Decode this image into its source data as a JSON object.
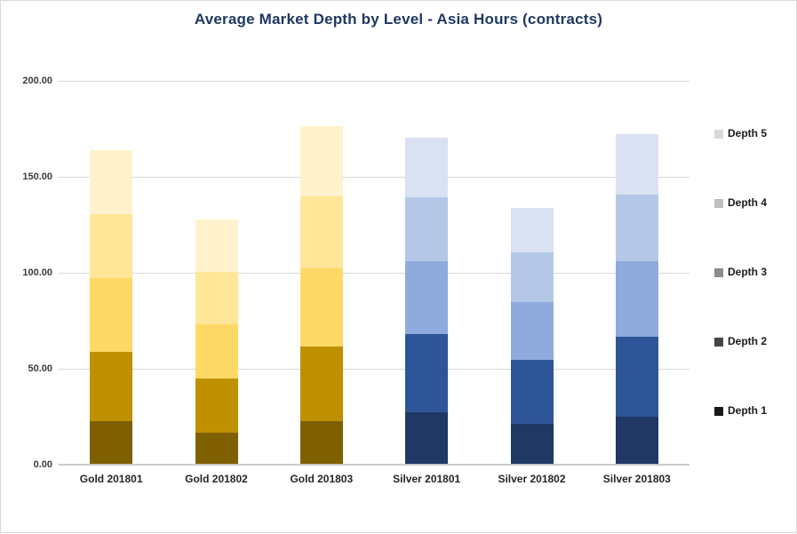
{
  "title": "Average Market Depth by Level - Asia Hours (contracts)",
  "colors": {
    "title_text": "#1F3864",
    "gridline": "#D9D9D9",
    "axis_line": "#C9C9C9",
    "y_tick_text": "#3B3B3B",
    "x_label_text": "#262626",
    "legend_text": "#1A1A1A",
    "gold_stack_bottom_to_top": [
      "#7F6000",
      "#BF9000",
      "#FFD966",
      "#FFE699",
      "#FFF2CC"
    ],
    "silver_stack_bottom_to_top": [
      "#1F3864",
      "#2E5597",
      "#8FAADC",
      "#B4C7E7",
      "#D9E1F2"
    ],
    "legend_markers": {
      "Depth 1": "#1A1A1A",
      "Depth 2": "#454545",
      "Depth 3": "#8C8C8C",
      "Depth 4": "#BFBFBF",
      "Depth 5": "#D9D9D9"
    }
  },
  "chart_data": {
    "type": "bar",
    "stacked": true,
    "title": "Average Market Depth by Level - Asia Hours (contracts)",
    "xlabel": "",
    "ylabel": "",
    "ylim": [
      0,
      200
    ],
    "grid": true,
    "legend_position": "right",
    "legend_order_top_to_bottom": [
      "Depth 5",
      "Depth 4",
      "Depth 3",
      "Depth 2",
      "Depth 1"
    ],
    "y_tick_values": [
      0,
      50,
      100,
      150,
      200
    ],
    "y_tick_labels": [
      "0.00",
      "50.00",
      "100.00",
      "150.00",
      "200.00"
    ],
    "categories": [
      "Gold 201801",
      "Gold 201802",
      "Gold 201803",
      "Silver 201801",
      "Silver 201802",
      "Silver 201803"
    ],
    "series": [
      {
        "name": "Depth 1",
        "values": [
          22.4,
          16.6,
          22.7,
          27.3,
          21.0,
          24.6
        ]
      },
      {
        "name": "Depth 2",
        "values": [
          36.1,
          28.0,
          38.9,
          40.4,
          33.5,
          42.1
        ]
      },
      {
        "name": "Depth 3",
        "values": [
          38.5,
          28.5,
          40.4,
          38.0,
          30.2,
          39.4
        ]
      },
      {
        "name": "Depth 4",
        "values": [
          33.7,
          27.4,
          37.6,
          33.8,
          25.8,
          34.6
        ]
      },
      {
        "name": "Depth 5",
        "values": [
          33.0,
          27.1,
          36.7,
          30.9,
          23.3,
          31.5
        ]
      }
    ],
    "totals": [
      163.7,
      127.6,
      176.3,
      170.4,
      133.8,
      172.2
    ]
  }
}
